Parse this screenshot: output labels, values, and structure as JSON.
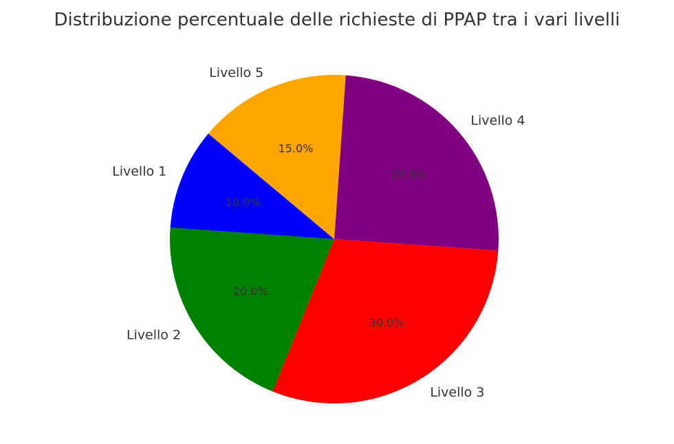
{
  "chart_data": {
    "type": "pie",
    "title": "Distribuzione percentuale delle richieste di PPAP tra i vari livelli",
    "labels": [
      "Livello 1",
      "Livello 2",
      "Livello 3",
      "Livello 4",
      "Livello 5"
    ],
    "values": [
      10.0,
      20.0,
      30.0,
      25.0,
      15.0
    ],
    "value_labels": [
      "10.0%",
      "20.0%",
      "30.0%",
      "25.0%",
      "15.0%"
    ],
    "colors": [
      "#0000ff",
      "#008000",
      "#ff0000",
      "#800080",
      "#ffa500"
    ],
    "start_angle_deg": 140,
    "direction": "counterclockwise",
    "legend": "none"
  }
}
